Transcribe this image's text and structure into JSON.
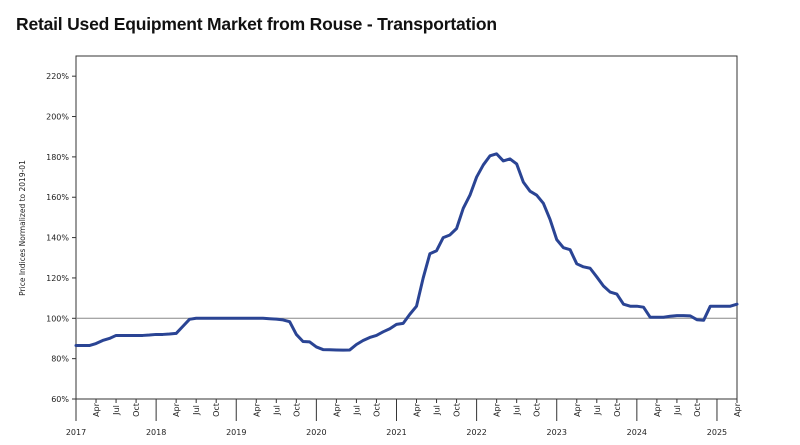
{
  "chart_data": {
    "type": "line",
    "title": "Retail Used Equipment Market from Rouse - Transportation",
    "xlabel": "",
    "ylabel": "Price Indices Normalized to 2019-01",
    "y_ticks": [
      "60%",
      "80%",
      "100%",
      "120%",
      "140%",
      "160%",
      "180%",
      "200%",
      "220%"
    ],
    "ylim": [
      60,
      230
    ],
    "reference_line": 100,
    "x_range": [
      "2017-01",
      "2025-04"
    ],
    "x_month_ticks": [
      "Apr",
      "Jul",
      "Oct"
    ],
    "x_year_labels": [
      "2017",
      "2018",
      "2019",
      "2020",
      "2021",
      "2022",
      "2023",
      "2024",
      "2025"
    ],
    "line_color": "#2a4494",
    "grid": false,
    "series": [
      {
        "name": "",
        "x": [
          "2017-01",
          "2017-02",
          "2017-03",
          "2017-04",
          "2017-05",
          "2017-06",
          "2017-07",
          "2017-08",
          "2017-09",
          "2017-10",
          "2017-11",
          "2017-12",
          "2018-01",
          "2018-02",
          "2018-03",
          "2018-04",
          "2018-05",
          "2018-06",
          "2018-07",
          "2018-08",
          "2018-09",
          "2018-10",
          "2018-11",
          "2018-12",
          "2019-01",
          "2019-02",
          "2019-03",
          "2019-04",
          "2019-05",
          "2019-06",
          "2019-07",
          "2019-08",
          "2019-09",
          "2019-10",
          "2019-11",
          "2019-12",
          "2020-01",
          "2020-02",
          "2020-03",
          "2020-04",
          "2020-05",
          "2020-06",
          "2020-07",
          "2020-08",
          "2020-09",
          "2020-10",
          "2020-11",
          "2020-12",
          "2021-01",
          "2021-02",
          "2021-03",
          "2021-04",
          "2021-05",
          "2021-06",
          "2021-07",
          "2021-08",
          "2021-09",
          "2021-10",
          "2021-11",
          "2021-12",
          "2022-01",
          "2022-02",
          "2022-03",
          "2022-04",
          "2022-05",
          "2022-06",
          "2022-07",
          "2022-08",
          "2022-09",
          "2022-10",
          "2022-11",
          "2022-12",
          "2023-01",
          "2023-02",
          "2023-03",
          "2023-04",
          "2023-05",
          "2023-06",
          "2023-07",
          "2023-08",
          "2023-09",
          "2023-10",
          "2023-11",
          "2023-12",
          "2024-01",
          "2024-02",
          "2024-03",
          "2024-04",
          "2024-05",
          "2024-06",
          "2024-07",
          "2024-08",
          "2024-09",
          "2024-10",
          "2024-11",
          "2024-12",
          "2025-01",
          "2025-02",
          "2025-03",
          "2025-04"
        ],
        "values": [
          86.5,
          86.5,
          86.5,
          87.5,
          89,
          90,
          91.5,
          91.5,
          91.5,
          91.5,
          91.5,
          91.7,
          92,
          92,
          92.2,
          92.5,
          96,
          99.5,
          100,
          100,
          100,
          100,
          100,
          100,
          100,
          100,
          100,
          100,
          100,
          99.8,
          99.6,
          99.2,
          98.3,
          92,
          88.5,
          88.3,
          85.8,
          84.5,
          84.4,
          84.3,
          84.2,
          84.3,
          87,
          89,
          90.5,
          91.5,
          93.3,
          94.8,
          97,
          97.5,
          102,
          106,
          120,
          132,
          133.5,
          140,
          141.3,
          144.5,
          154.5,
          161,
          170,
          176,
          180.5,
          181.5,
          178,
          179,
          176.5,
          167.5,
          163,
          161,
          157,
          149,
          139,
          135,
          134,
          127,
          125.5,
          124.8,
          120.5,
          116,
          113,
          112,
          107,
          106,
          106,
          105.5,
          100.5,
          100.5,
          100.5,
          101,
          101.3,
          101.3,
          101.2,
          99.3,
          99,
          106,
          106,
          106,
          106,
          107
        ]
      }
    ]
  }
}
